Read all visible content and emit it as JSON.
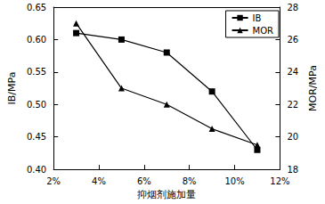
{
  "chart_data": {
    "type": "line",
    "x_label": "抑烟剂施加量",
    "y_label": "IB/MPa",
    "y2_label": "MOR/MPa",
    "x": [
      3,
      5,
      7,
      9,
      11
    ],
    "series": [
      {
        "name": "IB",
        "color": "#000000",
        "marker": "square",
        "line_style": "solid",
        "values": [
          0.61,
          0.6,
          0.58,
          0.52,
          0.43
        ]
      },
      {
        "name": "MOR",
        "color": "#000000",
        "marker": "triangle",
        "line_style": "solid",
        "axis": "y2",
        "values": [
          27.0,
          23.0,
          22.0,
          20.5,
          19.5
        ]
      }
    ],
    "xlim": [
      2,
      12
    ],
    "xticks": [
      {
        "value": 2,
        "label": "2%"
      },
      {
        "value": 4,
        "label": "4%"
      },
      {
        "value": 6,
        "label": "6%"
      },
      {
        "value": 8,
        "label": "8%"
      },
      {
        "value": 10,
        "label": "10%"
      },
      {
        "value": 12,
        "label": "12%"
      }
    ],
    "ylim": [
      0.4,
      0.65
    ],
    "yticks": [
      {
        "value": 0.4,
        "label": "0.40"
      },
      0.45,
      {
        "value": 0.5,
        "label": "0.50"
      },
      0.55,
      {
        "value": 0.6,
        "label": "0.60"
      },
      0.65
    ],
    "y2lim": [
      18,
      28
    ],
    "y2ticks": [
      18,
      20,
      22,
      24,
      26,
      28
    ],
    "legend": "top-right",
    "grid": false
  }
}
